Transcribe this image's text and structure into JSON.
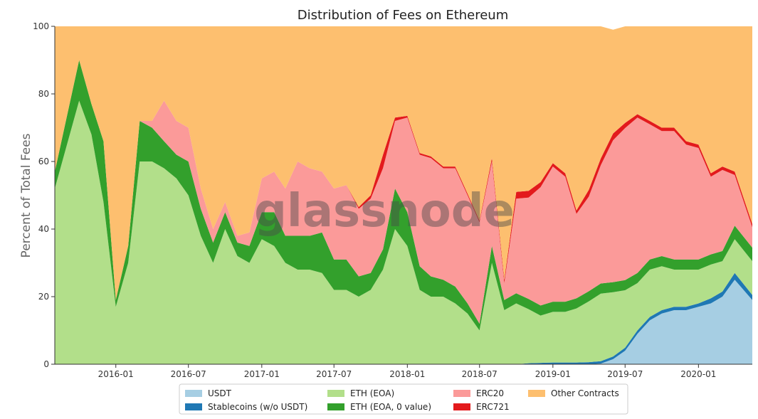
{
  "chart_data": {
    "type": "area",
    "stacked": true,
    "title": "Distribution of Fees on Ethereum",
    "xlabel": "",
    "ylabel": "Percent of Total Fees",
    "ylim": [
      0,
      100
    ],
    "yticks": [
      0,
      20,
      40,
      60,
      80,
      100
    ],
    "x": [
      "2015-09",
      "2015-10",
      "2015-11",
      "2015-12",
      "2016-01",
      "2016-02",
      "2016-03",
      "2016-04",
      "2016-05",
      "2016-06",
      "2016-07",
      "2016-08",
      "2016-09",
      "2016-10",
      "2016-11",
      "2016-12",
      "2017-01",
      "2017-02",
      "2017-03",
      "2017-04",
      "2017-05",
      "2017-06",
      "2017-07",
      "2017-08",
      "2017-09",
      "2017-10",
      "2017-11",
      "2017-12",
      "2018-01",
      "2018-02",
      "2018-03",
      "2018-04",
      "2018-05",
      "2018-06",
      "2018-07",
      "2018-08",
      "2018-09",
      "2018-10",
      "2018-11",
      "2018-12",
      "2019-01",
      "2019-02",
      "2019-03",
      "2019-04",
      "2019-05",
      "2019-06",
      "2019-07",
      "2019-08",
      "2019-09",
      "2019-10",
      "2019-11",
      "2019-12",
      "2020-01",
      "2020-02",
      "2020-03",
      "2020-04",
      "2020-05"
    ],
    "xticks": [
      "2016-01",
      "2016-07",
      "2017-01",
      "2017-07",
      "2018-01",
      "2018-07",
      "2019-01",
      "2019-07",
      "2020-01"
    ],
    "series": [
      {
        "name": "USDT",
        "color": "#a6cee3",
        "values": [
          0,
          0,
          0,
          0,
          0,
          0,
          0,
          0,
          0,
          0,
          0,
          0,
          0,
          0,
          0,
          0,
          0,
          0,
          0,
          0,
          0,
          0,
          0,
          0,
          0,
          0,
          0,
          0,
          0,
          0,
          0,
          0,
          0,
          0,
          0,
          0,
          0,
          0,
          0,
          0,
          0,
          0,
          0,
          0,
          0.2,
          1.5,
          4,
          9,
          13,
          15,
          16,
          16,
          17,
          18,
          20,
          25,
          19
        ]
      },
      {
        "name": "Stablecoins (w/o USDT)",
        "color": "#1f78b4",
        "values": [
          0,
          0,
          0,
          0,
          0,
          0,
          0,
          0,
          0,
          0,
          0,
          0,
          0,
          0,
          0,
          0,
          0,
          0,
          0,
          0,
          0,
          0,
          0,
          0,
          0,
          0,
          0,
          0,
          0,
          0,
          0,
          0,
          0,
          0,
          0,
          0,
          0,
          0,
          0.3,
          0.4,
          0.5,
          0.5,
          0.5,
          0.6,
          0.7,
          0.8,
          0.9,
          1,
          1,
          1,
          1,
          1,
          1,
          1.5,
          1.5,
          2,
          1.5
        ]
      },
      {
        "name": "ETH (EOA)",
        "color": "#b2df8a",
        "values": [
          52,
          78,
          68,
          48,
          17,
          30,
          60,
          60,
          58,
          55,
          50,
          38,
          30,
          40,
          32,
          30,
          37,
          35,
          30,
          28,
          28,
          27,
          22,
          22,
          20,
          22,
          28,
          40,
          35,
          22,
          20,
          20,
          18,
          15,
          10,
          30,
          16,
          18,
          16,
          14,
          15,
          15,
          16,
          18,
          20,
          19,
          17,
          14,
          14,
          13,
          11,
          11,
          10,
          10,
          9,
          10,
          10
        ]
      },
      {
        "name": "ETH (EOA, 0 value)",
        "color": "#33a02c",
        "values": [
          5,
          12,
          9,
          18,
          2,
          5,
          12,
          10,
          8,
          7,
          10,
          8,
          6,
          5,
          4,
          5,
          8,
          10,
          8,
          10,
          10,
          12,
          9,
          9,
          6,
          5,
          6,
          12,
          10,
          7,
          6,
          5,
          5,
          3,
          2,
          5,
          3,
          3,
          3,
          3,
          3,
          3,
          3,
          3,
          3,
          3,
          3,
          3,
          3,
          3,
          3,
          3,
          3,
          3,
          3,
          4,
          4
        ]
      },
      {
        "name": "ERC20",
        "color": "#fb9a99",
        "values": [
          0,
          0,
          0,
          0,
          0,
          0,
          0,
          2,
          12,
          10,
          10,
          6,
          4,
          3,
          2,
          4,
          10,
          12,
          14,
          22,
          20,
          18,
          21,
          22,
          20,
          22,
          24,
          20,
          28,
          33,
          35,
          33,
          35,
          32,
          30,
          25,
          5,
          28,
          30,
          35,
          40,
          37,
          25,
          28,
          35,
          42,
          45,
          46,
          40,
          37,
          38,
          34,
          33,
          23,
          24,
          15,
          6
        ]
      },
      {
        "name": "ERC721",
        "color": "#e31a1c",
        "values": [
          0,
          0,
          0,
          0,
          0,
          0,
          0,
          0,
          0,
          0,
          0,
          0,
          0,
          0,
          0,
          0,
          0,
          0,
          0,
          0,
          0,
          0,
          0,
          0,
          0.5,
          1,
          4,
          1,
          0.5,
          0.5,
          0.5,
          0.5,
          0.5,
          0.5,
          0.5,
          1,
          1,
          2,
          2,
          1.5,
          1,
          1,
          1,
          2,
          2,
          2,
          1.5,
          1,
          1,
          1,
          1,
          1,
          1,
          1,
          1,
          1,
          1
        ]
      },
      {
        "name": "Other Contracts",
        "color": "#fdbf6f",
        "values": [
          43,
          10,
          23,
          34,
          81,
          65,
          28,
          28,
          22,
          28,
          30,
          48,
          60,
          52,
          62,
          61,
          45,
          43,
          48,
          40,
          42,
          43,
          48,
          47,
          53.5,
          50,
          38,
          27,
          26.5,
          37.5,
          38.5,
          41.5,
          41.5,
          49.5,
          57.5,
          39,
          75,
          49,
          48.7,
          46.1,
          40.5,
          43.5,
          54.5,
          48.4,
          39.1,
          30.7,
          28.6,
          26,
          28,
          30,
          30,
          34,
          35,
          43.5,
          41.5,
          43,
          58.5
        ]
      }
    ],
    "legend": {
      "position": "bottom-center",
      "columns": [
        [
          "USDT",
          "Stablecoins (w/o USDT)"
        ],
        [
          "ETH (EOA)",
          "ETH (EOA, 0 value)"
        ],
        [
          "ERC20",
          "ERC721"
        ],
        [
          "Other Contracts"
        ]
      ]
    },
    "watermark": "glassnode"
  }
}
